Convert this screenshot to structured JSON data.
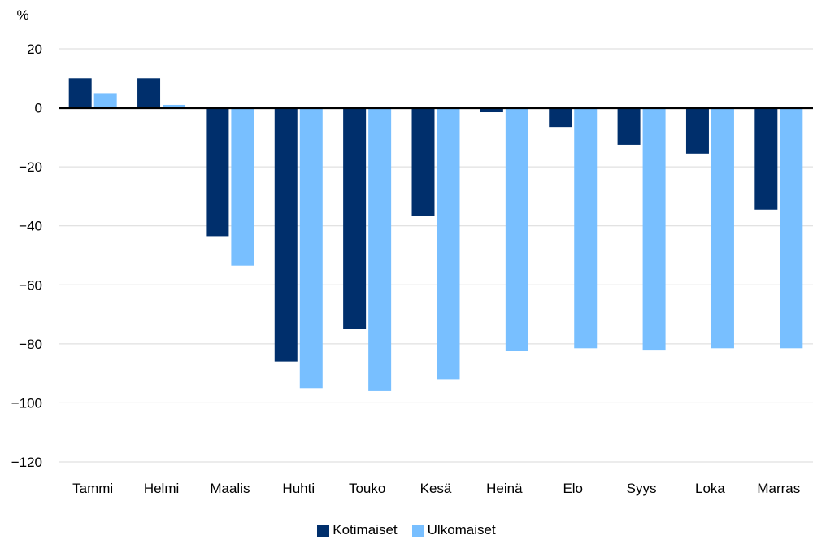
{
  "chart_data": {
    "type": "bar",
    "unit_label": "%",
    "categories": [
      "Tammi",
      "Helmi",
      "Maalis",
      "Huhti",
      "Touko",
      "Kesä",
      "Heinä",
      "Elo",
      "Syys",
      "Loka",
      "Marras"
    ],
    "series": [
      {
        "name": "Kotimaiset",
        "color": "#002f6c",
        "values": [
          10,
          10,
          -43.5,
          -86,
          -75,
          -36.5,
          -1.5,
          -6.5,
          -12.5,
          -15.5,
          -34.5
        ]
      },
      {
        "name": "Ulkomaiset",
        "color": "#78bfff",
        "values": [
          5,
          1,
          -53.5,
          -95,
          -96,
          -92,
          -82.5,
          -81.5,
          -82,
          -81.5,
          -81.5
        ]
      }
    ],
    "yticks": [
      20,
      0,
      -20,
      -40,
      -60,
      -80,
      -100,
      -120
    ],
    "ytick_labels": [
      "20",
      "0",
      "−20",
      "−40",
      "−60",
      "−80",
      "−100",
      "−120"
    ],
    "ylim": [
      -120,
      20
    ],
    "grid": true,
    "legend_position": "bottom-center"
  }
}
